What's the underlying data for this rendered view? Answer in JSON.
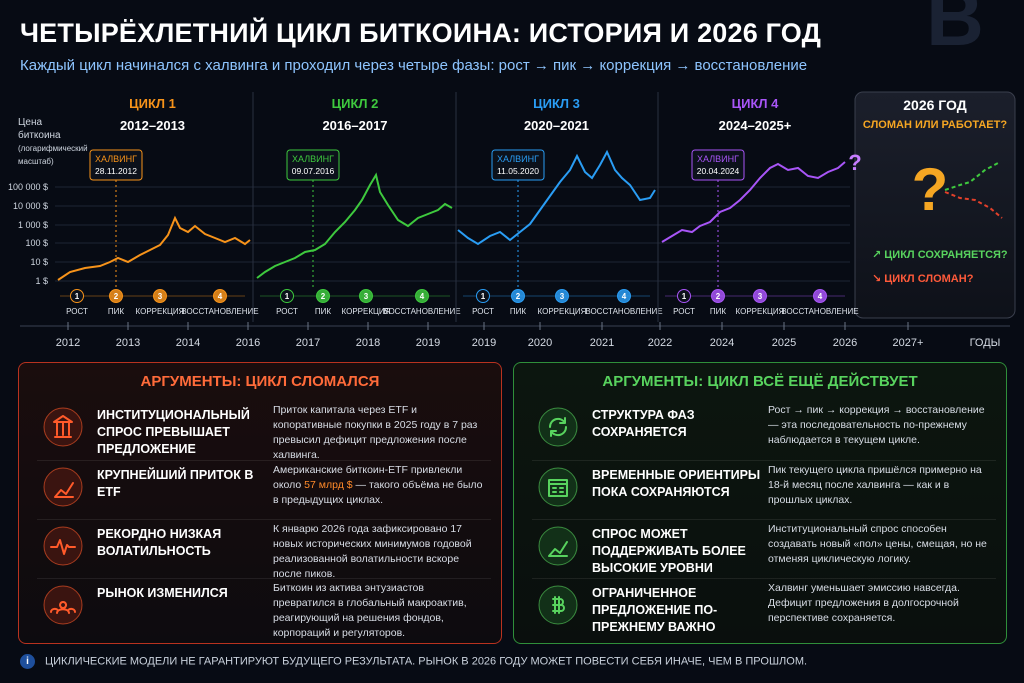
{
  "header": {
    "title": "ЧЕТЫРЁХЛЕТНИЙ ЦИКЛ БИТКОИНА: ИСТОРИЯ И 2026 ГОД",
    "subtitle": "Каждый цикл начинался с халвинга и проходил через четыре фазы: рост → пик → коррекция → восстановление"
  },
  "chart": {
    "y_label": [
      "Цена",
      "биткоина",
      "(логарифмический",
      "масштаб)"
    ],
    "y_ticks": [
      "100 000 $",
      "10 000 $",
      "1 000 $",
      "100 $",
      "10 $",
      "1 $"
    ],
    "x_ticks": [
      "2012",
      "2013",
      "2014",
      "2016",
      "2017",
      "2018",
      "2019",
      "2019",
      "2020",
      "2021",
      "2022",
      "2024",
      "2025",
      "2026",
      "2027+"
    ],
    "x_unit": "ГОДЫ",
    "cycles": [
      {
        "label": "ЦИКЛ 1",
        "years": "2012–2013",
        "halving": "ХАЛВИНГ",
        "date": "28.11.2012",
        "phases": [
          {
            "num": "1",
            "name": "РОСТ"
          },
          {
            "num": "2",
            "name": "ПИК"
          },
          {
            "num": "3",
            "name": "КОРРЕКЦИЯ"
          },
          {
            "num": "4",
            "name": "ВОССТАНОВЛЕНИЕ"
          }
        ]
      },
      {
        "label": "ЦИКЛ 2",
        "years": "2016–2017",
        "halving": "ХАЛВИНГ",
        "date": "09.07.2016",
        "phases": [
          {
            "num": "1",
            "name": "РОСТ"
          },
          {
            "num": "2",
            "name": "ПИК"
          },
          {
            "num": "3",
            "name": "КОРРЕКЦИЯ"
          },
          {
            "num": "4",
            "name": "ВОССТАНОВЛЕНИЕ"
          }
        ]
      },
      {
        "label": "ЦИКЛ 3",
        "years": "2020–2021",
        "halving": "ХАЛВИНГ",
        "date": "11.05.2020",
        "phases": [
          {
            "num": "1",
            "name": "РОСТ"
          },
          {
            "num": "2",
            "name": "ПИК"
          },
          {
            "num": "3",
            "name": "КОРРЕКЦИЯ"
          },
          {
            "num": "4",
            "name": "ВОССТАНОВЛЕНИЕ"
          }
        ]
      },
      {
        "label": "ЦИКЛ 4",
        "years": "2024–2025+",
        "halving": "ХАЛВИНГ",
        "date": "20.04.2024",
        "phases": [
          {
            "num": "1",
            "name": "РОСТ"
          },
          {
            "num": "2",
            "name": "ПИК"
          },
          {
            "num": "3",
            "name": "КОРРЕКЦИЯ"
          },
          {
            "num": "4",
            "name": "ВОССТАНОВЛЕНИЕ"
          }
        ]
      }
    ],
    "cycle4_mark": "?"
  },
  "panel_2026": {
    "title": "2026 ГОД",
    "subtitle": "СЛОМАН ИЛИ РАБОТАЕТ?",
    "question": "?",
    "options": [
      "↗ ЦИКЛ СОХРАНЯЕТСЯ?",
      "↘ ЦИКЛ СЛОМАН?"
    ]
  },
  "broken": {
    "title": "АРГУМЕНТЫ: ЦИКЛ СЛОМАЛСЯ",
    "items": [
      {
        "title": "ИНСТИТУЦИОНАЛЬНЫЙ СПРОС ПРЕВЫШАЕТ ПРЕДЛОЖЕНИЕ",
        "text": [
          "Приток капитала через ETF и копоративные покупки в 2025 году в 7 раз превысил дефицит предложения после халвинга."
        ]
      },
      {
        "title": "КРУПНЕЙШИЙ ПРИТОК В ETF",
        "text": [
          "Американские биткоин-ETF привлекли около ",
          "57 млрд $",
          " — такого объёма не было в предыдущих циклах."
        ]
      },
      {
        "title": "РЕКОРДНО НИЗКАЯ ВОЛАТИЛЬНОСТЬ",
        "text": [
          "К январю 2026 года зафиксировано 17 новых исторических минимумов годовой реализованной волатильности вскоре после пиков."
        ]
      },
      {
        "title": "РЫНОК ИЗМЕНИЛСЯ",
        "text": [
          "Биткоин из актива энтузиастов превратился в глобальный макроактив, реагирующий на решения фондов, корпораций и регуляторов."
        ]
      }
    ]
  },
  "works": {
    "title": "АРГУМЕНТЫ: ЦИКЛ ВСЁ ЕЩЁ ДЕЙСТВУЕТ",
    "items": [
      {
        "title": "СТРУКТУРА ФАЗ СОХРАНЯЕТСЯ",
        "text": [
          "Рост → пик → коррекция → восстановление — эта последовательность по-прежнему наблюдается в текущем цикле."
        ]
      },
      {
        "title": "ВРЕМЕННЫЕ ОРИЕНТИРЫ ПОКА СОХРАНЯЮТСЯ",
        "text": [
          "Пик текущего цикла пришёлся примерно на 18-й месяц после халвинга — как и в прошлых циклах."
        ]
      },
      {
        "title": "СПРОС МОЖЕТ ПОДДЕРЖИВАТЬ БОЛЕЕ ВЫСОКИЕ УРОВНИ",
        "text": [
          "Институциональный спрос способен создавать новый «пол» цены, смещая, но не отменяя циклическую логику."
        ]
      },
      {
        "title": "ОГРАНИЧЕННОЕ ПРЕДЛОЖЕНИЕ ПО-ПРЕЖНЕМУ ВАЖНО",
        "text": [
          "Халвинг уменьшает эмиссию навсегда. Дефицит предложения в долгосрочной перспективе сохраняется."
        ]
      }
    ]
  },
  "footer": {
    "icon": "i",
    "text": "ЦИКЛИЧЕСКИЕ МОДЕЛИ НЕ ГАРАНТИРУЮТ БУДУЩЕГО РЕЗУЛЬТАТА. РЫНОК В 2026 ГОДУ МОЖЕТ ПОВЕСТИ СЕБЯ ИНАЧЕ, ЧЕМ В ПРОШЛОМ."
  }
}
